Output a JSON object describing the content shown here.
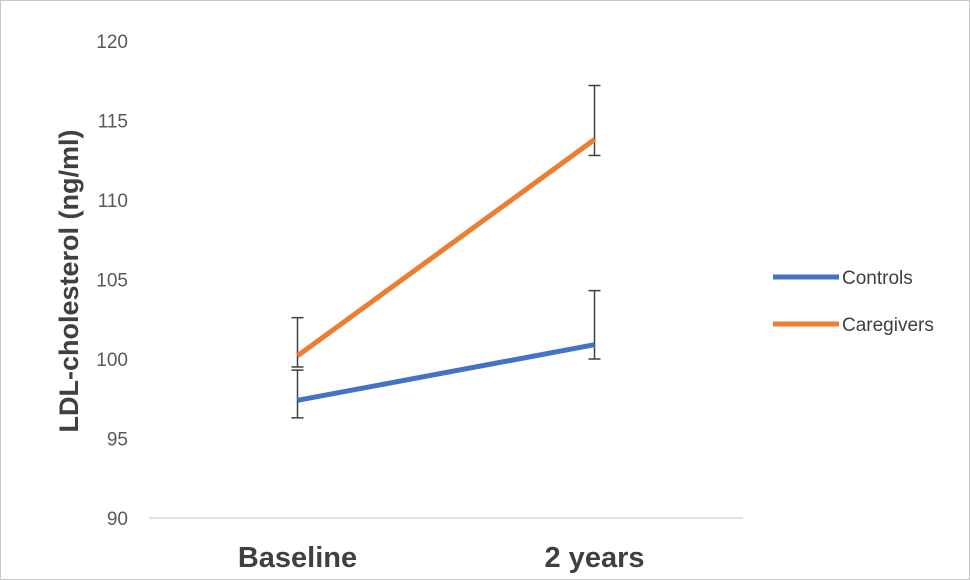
{
  "chart_data": {
    "type": "line",
    "categories": [
      "Baseline",
      "2 years"
    ],
    "ylabel": "LDL-cholesterol (ng/ml)",
    "xlabel": "",
    "ylim": [
      90,
      120
    ],
    "yticks": [
      90,
      95,
      100,
      105,
      110,
      115,
      120
    ],
    "grid": false,
    "legend_position": "right",
    "series": [
      {
        "name": "Controls",
        "color": "#4472C4",
        "values": [
          97.4,
          100.9
        ],
        "error": [
          [
            96.3,
            99.3
          ],
          [
            100.0,
            104.3
          ]
        ]
      },
      {
        "name": "Caregivers",
        "color": "#ED7D31",
        "values": [
          100.2,
          113.8
        ],
        "error": [
          [
            99.5,
            102.6
          ],
          [
            112.8,
            117.2
          ]
        ]
      }
    ]
  }
}
